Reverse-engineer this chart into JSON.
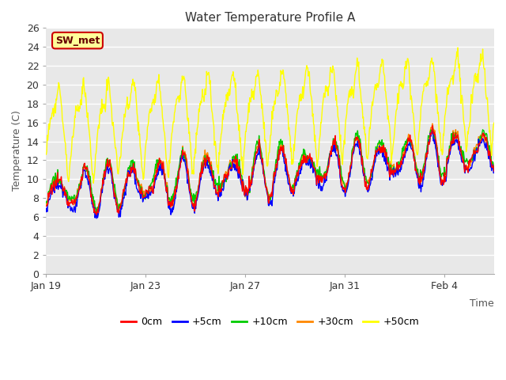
{
  "title": "Water Temperature Profile A",
  "xlabel": "Time",
  "ylabel": "Temperature (C)",
  "ylim": [
    0,
    26
  ],
  "yticks": [
    0,
    2,
    4,
    6,
    8,
    10,
    12,
    14,
    16,
    18,
    20,
    22,
    24,
    26
  ],
  "xtick_labels": [
    "Jan 19",
    "Jan 23",
    "Jan 27",
    "Jan 31",
    "Feb 4"
  ],
  "xtick_positions": [
    0,
    4,
    8,
    12,
    16
  ],
  "legend_labels": [
    "0cm",
    "+5cm",
    "+10cm",
    "+30cm",
    "+50cm"
  ],
  "legend_colors": [
    "#ff0000",
    "#0000ff",
    "#00cc00",
    "#ff8800",
    "#ffff00"
  ],
  "annotation_text": "SW_met",
  "annotation_bg": "#ffff99",
  "annotation_border": "#cc0000",
  "annotation_text_color": "#660000",
  "plot_bg_color": "#e8e8e8",
  "grid_color": "#ffffff",
  "line_width": 1.0
}
